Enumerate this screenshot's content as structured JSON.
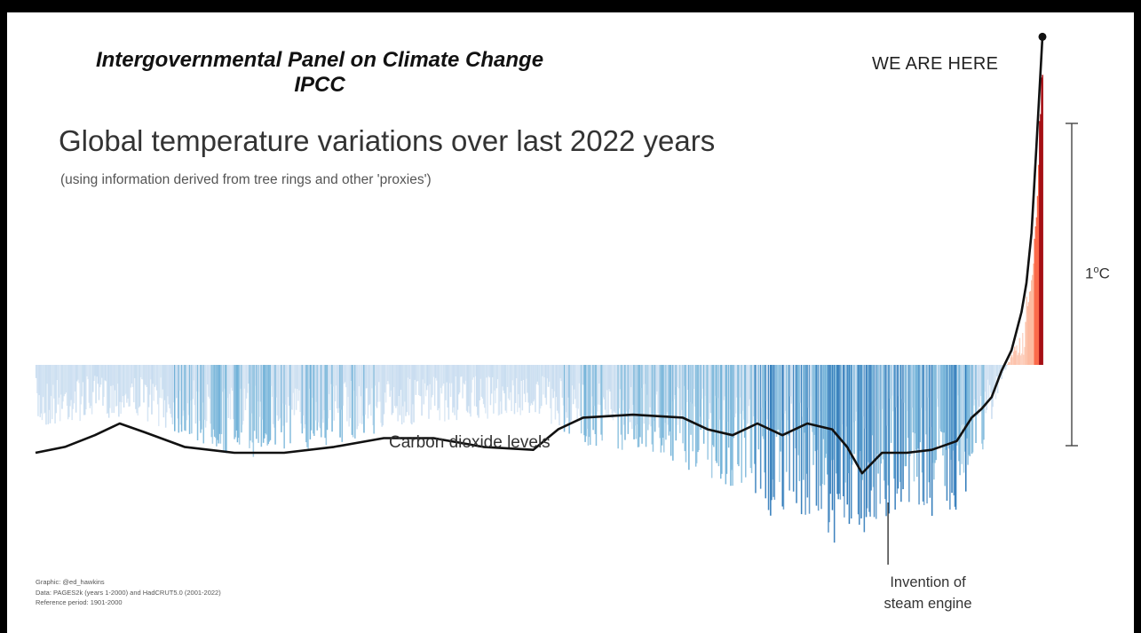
{
  "heading": {
    "org": "Intergovernmental Panel on Climate Change",
    "abbr": "IPCC"
  },
  "chart_data": {
    "type": "bar",
    "title": "Global temperature variations over last 2022 years",
    "subtitle": "(using information derived from tree rings and other 'proxies')",
    "x_range": [
      1,
      2022
    ],
    "y_unit": "°C",
    "scale_bar": {
      "label_value": "1",
      "label_unit": "C",
      "span_c": 1.0
    },
    "reference_period": "1901-2000",
    "line_series": {
      "name": "Carbon dioxide levels",
      "points": [
        [
          1,
          -0.3
        ],
        [
          60,
          -0.28
        ],
        [
          120,
          -0.24
        ],
        [
          170,
          -0.2
        ],
        [
          220,
          -0.23
        ],
        [
          300,
          -0.28
        ],
        [
          400,
          -0.3
        ],
        [
          500,
          -0.3
        ],
        [
          600,
          -0.28
        ],
        [
          700,
          -0.25
        ],
        [
          800,
          -0.25
        ],
        [
          900,
          -0.28
        ],
        [
          1000,
          -0.29
        ],
        [
          1050,
          -0.22
        ],
        [
          1100,
          -0.18
        ],
        [
          1200,
          -0.17
        ],
        [
          1300,
          -0.18
        ],
        [
          1350,
          -0.22
        ],
        [
          1400,
          -0.24
        ],
        [
          1450,
          -0.2
        ],
        [
          1500,
          -0.24
        ],
        [
          1550,
          -0.2
        ],
        [
          1600,
          -0.22
        ],
        [
          1630,
          -0.28
        ],
        [
          1660,
          -0.37
        ],
        [
          1700,
          -0.3
        ],
        [
          1750,
          -0.3
        ],
        [
          1800,
          -0.29
        ],
        [
          1850,
          -0.26
        ],
        [
          1880,
          -0.18
        ],
        [
          1900,
          -0.15
        ],
        [
          1920,
          -0.11
        ],
        [
          1940,
          -0.02
        ],
        [
          1960,
          0.05
        ],
        [
          1980,
          0.18
        ],
        [
          1990,
          0.28
        ],
        [
          2000,
          0.45
        ],
        [
          2010,
          0.75
        ],
        [
          2022,
          1.12
        ]
      ]
    },
    "stripes_summary": [
      [
        1,
        -0.18
      ],
      [
        100,
        -0.15
      ],
      [
        200,
        -0.14
      ],
      [
        300,
        -0.2
      ],
      [
        400,
        -0.26
      ],
      [
        500,
        -0.24
      ],
      [
        600,
        -0.22
      ],
      [
        700,
        -0.18
      ],
      [
        800,
        -0.16
      ],
      [
        900,
        -0.15
      ],
      [
        1000,
        -0.14
      ],
      [
        1100,
        -0.22
      ],
      [
        1200,
        -0.24
      ],
      [
        1300,
        -0.28
      ],
      [
        1400,
        -0.34
      ],
      [
        1450,
        -0.45
      ],
      [
        1500,
        -0.4
      ],
      [
        1550,
        -0.42
      ],
      [
        1600,
        -0.52
      ],
      [
        1650,
        -0.48
      ],
      [
        1700,
        -0.42
      ],
      [
        1750,
        -0.38
      ],
      [
        1800,
        -0.46
      ],
      [
        1850,
        -0.4
      ],
      [
        1900,
        -0.25
      ],
      [
        1950,
        0.0
      ],
      [
        1980,
        0.1
      ],
      [
        2000,
        0.3
      ],
      [
        2010,
        0.55
      ],
      [
        2022,
        1.1
      ]
    ],
    "annotations": [
      {
        "text": "WE ARE HERE",
        "x": 2022
      },
      {
        "text": "Invention of steam engine",
        "x": 1712
      }
    ],
    "colors": {
      "cool_light": "#c6dbef",
      "cool_mid": "#6baed6",
      "cool_dark": "#2171b5",
      "warm_light": "#fcbba1",
      "warm_mid": "#fb6a4a",
      "warm_dark": "#a50f15",
      "line": "#111111"
    }
  },
  "annotations": {
    "we_are_here": "WE ARE HERE",
    "steam_line1": "Invention of",
    "steam_line2": "steam engine"
  },
  "credits": {
    "line1": "Graphic: @ed_hawkins",
    "line2": "Data: PAGES2k (years 1-2000) and HadCRUT5.0 (2001-2022)",
    "line3": "Reference period: 1901-2000"
  }
}
